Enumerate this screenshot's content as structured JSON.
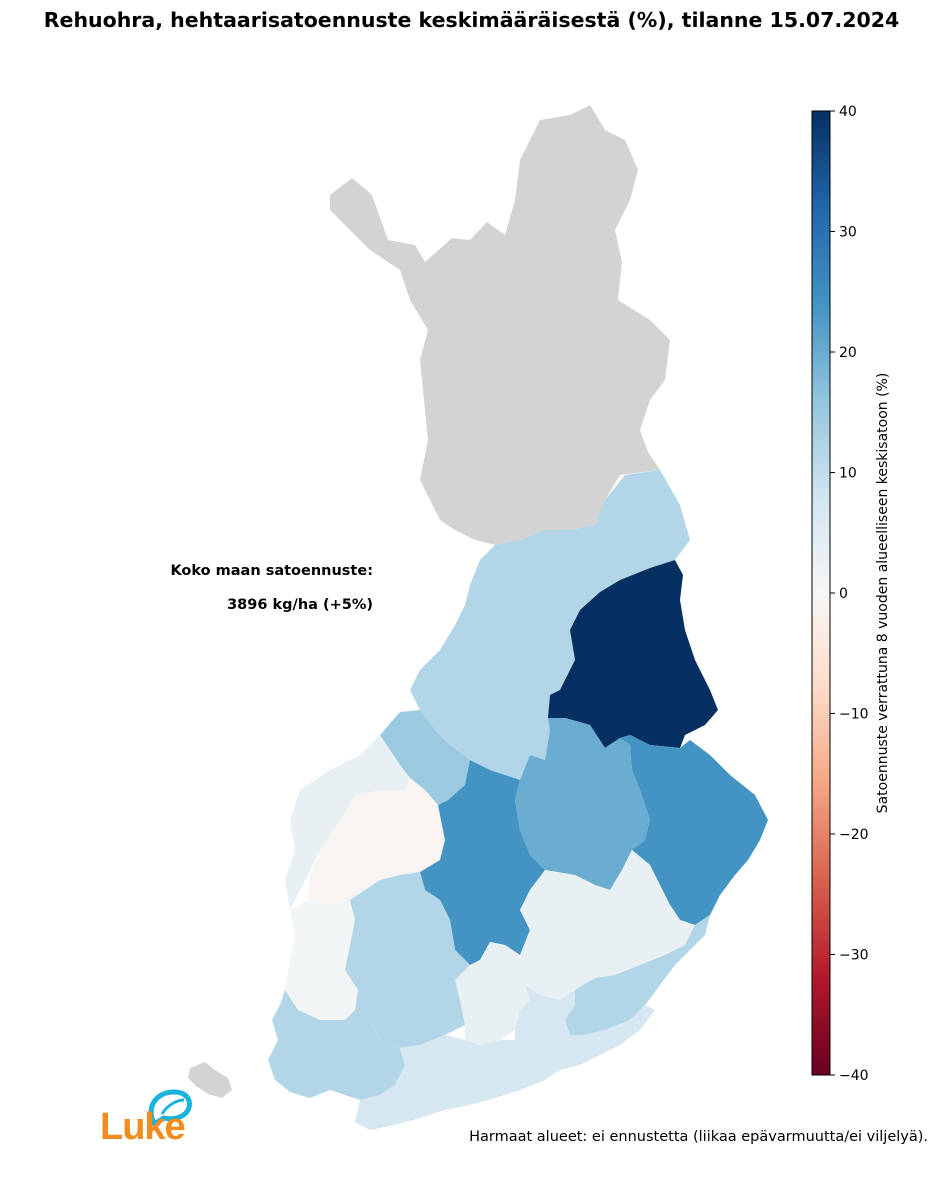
{
  "title": "Rehuohra, hehtaarisatoennuste keskimääräisestä (%), tilanne 15.07.2024",
  "total": {
    "label": "Koko maan satoennuste:",
    "value": "3896 kg/ha (+5%)"
  },
  "footnote": "Harmaat alueet: ei ennustetta (liikaa epävarmuutta/ei viljelyä).",
  "logo": {
    "text": "Luke",
    "icon": "leaf-speech-bubble-icon",
    "text_color": "#f28c1d",
    "icon_color": "#19b3dc"
  },
  "chart_data": {
    "type": "choropleth",
    "colormap": "RdBu",
    "no_data_color": "#d3d3d3",
    "colorbar": {
      "label": "Satoennuste verrattuna 8 vuoden alueelliseen keskisatoon (%)",
      "range": [
        -40,
        40
      ],
      "ticks": [
        "40",
        "30",
        "20",
        "10",
        "0",
        "−10",
        "−20",
        "−30",
        "−40"
      ]
    },
    "regions": [
      {
        "id": "lapland",
        "value": null
      },
      {
        "id": "northern-ostrobothnia",
        "value": 12
      },
      {
        "id": "kainuu",
        "value": 40
      },
      {
        "id": "central-ostrobothnia",
        "value": 15
      },
      {
        "id": "ostrobothnia",
        "value": 3
      },
      {
        "id": "south-ostrobothnia",
        "value": -1
      },
      {
        "id": "central-finland",
        "value": 24
      },
      {
        "id": "northern-savonia",
        "value": 20
      },
      {
        "id": "north-karelia",
        "value": 24
      },
      {
        "id": "southern-savonia",
        "value": 3
      },
      {
        "id": "south-karelia",
        "value": 12
      },
      {
        "id": "satakunta",
        "value": 1
      },
      {
        "id": "pirkanmaa",
        "value": 12
      },
      {
        "id": "kanta-hame",
        "value": 3
      },
      {
        "id": "paijat-hame",
        "value": 7
      },
      {
        "id": "kymenlaakso",
        "value": 7
      },
      {
        "id": "southwest-finland",
        "value": 12
      },
      {
        "id": "uusimaa",
        "value": 7
      },
      {
        "id": "aland",
        "value": null
      }
    ]
  }
}
